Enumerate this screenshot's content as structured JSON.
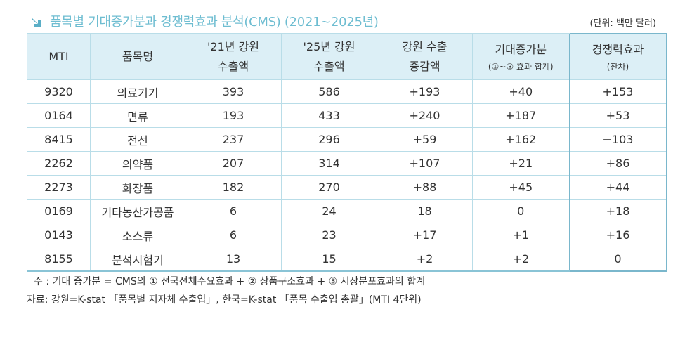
{
  "title": "품목별 기대증가분과 경쟁력효과 분석(CMS) (2021~2025년)",
  "unit": "(단위: 백만 달러)",
  "colors": {
    "title": "#6ebdd1",
    "header_bg": "#dceff6",
    "border": "#b9dde8",
    "highlight_border": "#7ab7cc",
    "icon": "#5aaec6"
  },
  "title_icon": "arrow-down-right-icon",
  "headers": {
    "mti": "MTI",
    "name": "품목명",
    "exp21_line1": "'21년 강원",
    "exp21_line2": "수출액",
    "exp25_line1": "'25년 강원",
    "exp25_line2": "수출액",
    "change_line1": "강원 수출",
    "change_line2": "증감액",
    "expected_line1": "기대증가분",
    "expected_line2": "(①~③ 효과 합계)",
    "comp_line1": "경쟁력효과",
    "comp_line2": "(잔차)"
  },
  "rows": [
    {
      "mti": "9320",
      "name": "의료기기",
      "exp21": "393",
      "exp25": "586",
      "change": "+193",
      "expected": "+40",
      "comp": "+153"
    },
    {
      "mti": "0164",
      "name": "면류",
      "exp21": "193",
      "exp25": "433",
      "change": "+240",
      "expected": "+187",
      "comp": "+53"
    },
    {
      "mti": "8415",
      "name": "전선",
      "exp21": "237",
      "exp25": "296",
      "change": "+59",
      "expected": "+162",
      "comp": "−103"
    },
    {
      "mti": "2262",
      "name": "의약품",
      "exp21": "207",
      "exp25": "314",
      "change": "+107",
      "expected": "+21",
      "comp": "+86"
    },
    {
      "mti": "2273",
      "name": "화장품",
      "exp21": "182",
      "exp25": "270",
      "change": "+88",
      "expected": "+45",
      "comp": "+44"
    },
    {
      "mti": "0169",
      "name": "기타농산가공품",
      "exp21": "6",
      "exp25": "24",
      "change": "18",
      "expected": "0",
      "comp": "+18"
    },
    {
      "mti": "0143",
      "name": "소스류",
      "exp21": "6",
      "exp25": "23",
      "change": "+17",
      "expected": "+1",
      "comp": "+16"
    },
    {
      "mti": "8155",
      "name": "분석시험기",
      "exp21": "13",
      "exp25": "15",
      "change": "+2",
      "expected": "+2",
      "comp": "0"
    }
  ],
  "note": "주 : 기대 증가분 = CMS의 ① 전국전체수요효과 + ② 상품구조효과 + ③ 시장분포효과의 합계",
  "source": "자료: 강원=K-stat 「품목별 지자체 수출입」, 한국=K-stat 「품목 수출입 총괄」(MTI 4단위)"
}
